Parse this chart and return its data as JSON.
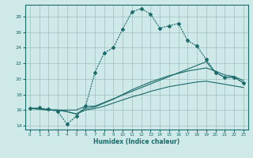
{
  "xlabel": "Humidex (Indice chaleur)",
  "background_color": "#cfe8e8",
  "grid_color": "#a0bfbf",
  "line_color": "#1a6b6b",
  "xlim": [
    -0.5,
    23.5
  ],
  "ylim": [
    13.5,
    29.5
  ],
  "xticks": [
    0,
    1,
    2,
    3,
    4,
    5,
    6,
    7,
    8,
    9,
    10,
    11,
    12,
    13,
    14,
    15,
    16,
    17,
    18,
    19,
    20,
    21,
    22,
    23
  ],
  "yticks": [
    14,
    16,
    18,
    20,
    22,
    24,
    26,
    28
  ],
  "line1_x": [
    0,
    1,
    2,
    3,
    4,
    5,
    6,
    7,
    8,
    9,
    10,
    11,
    12,
    13,
    14,
    15,
    16,
    17,
    18,
    19,
    20,
    21,
    22,
    23
  ],
  "line1_y": [
    16.2,
    16.3,
    16.1,
    15.8,
    14.2,
    15.2,
    16.5,
    20.8,
    23.3,
    24.0,
    26.4,
    28.6,
    29.0,
    28.3,
    26.5,
    26.8,
    27.1,
    24.9,
    24.2,
    22.5,
    20.8,
    20.2,
    20.2,
    19.5
  ],
  "line1_marker": true,
  "line2_x": [
    0,
    2,
    3,
    4,
    5,
    6,
    7,
    19,
    20,
    21,
    22,
    23
  ],
  "line2_y": [
    16.2,
    16.0,
    16.0,
    16.0,
    16.0,
    16.5,
    16.5,
    22.2,
    20.8,
    20.2,
    20.2,
    19.5
  ],
  "line2_marker": false,
  "line3_x": [
    0,
    1,
    2,
    3,
    4,
    5,
    6,
    7,
    8,
    9,
    10,
    11,
    12,
    13,
    14,
    15,
    16,
    17,
    18,
    19,
    20,
    21,
    22,
    23
  ],
  "line3_y": [
    16.2,
    16.2,
    16.0,
    16.0,
    15.8,
    15.5,
    16.2,
    16.4,
    16.9,
    17.4,
    18.0,
    18.6,
    19.1,
    19.6,
    20.0,
    20.4,
    20.7,
    21.0,
    21.2,
    21.4,
    21.0,
    20.5,
    20.3,
    19.8
  ],
  "line3_marker": false,
  "line4_x": [
    0,
    1,
    2,
    3,
    4,
    5,
    6,
    7,
    8,
    9,
    10,
    11,
    12,
    13,
    14,
    15,
    16,
    17,
    18,
    19,
    20,
    21,
    22,
    23
  ],
  "line4_y": [
    16.2,
    16.2,
    16.0,
    16.0,
    15.8,
    15.5,
    16.0,
    16.2,
    16.5,
    16.9,
    17.3,
    17.7,
    18.0,
    18.4,
    18.7,
    19.0,
    19.2,
    19.4,
    19.6,
    19.7,
    19.5,
    19.3,
    19.1,
    18.9
  ],
  "line4_marker": false
}
